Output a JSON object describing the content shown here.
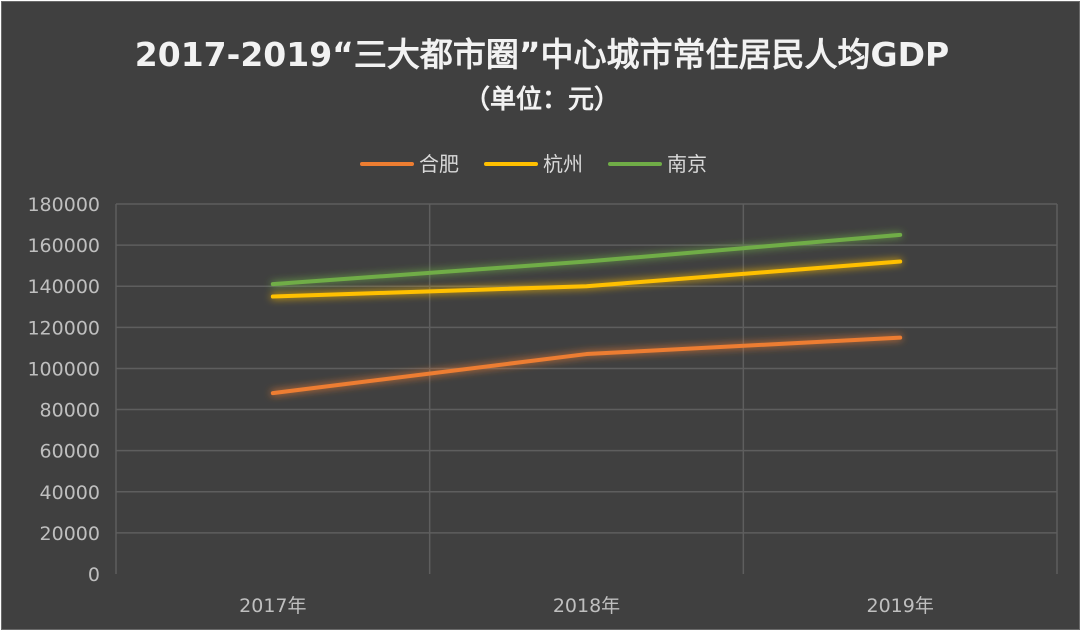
{
  "chart_data": {
    "type": "line",
    "title": "2017-2019“三大都市圈”中心城市常住居民人均GDP",
    "subtitle": "（单位：元）",
    "categories": [
      "2017年",
      "2018年",
      "2019年"
    ],
    "series": [
      {
        "name": "合肥",
        "color": "#ed7d31",
        "values": [
          88000,
          107000,
          115000
        ]
      },
      {
        "name": "杭州",
        "color": "#ffc000",
        "values": [
          135000,
          140000,
          152000
        ]
      },
      {
        "name": "南京",
        "color": "#70ad47",
        "values": [
          141000,
          152000,
          165000
        ]
      }
    ],
    "y_ticks": [
      "0",
      "20000",
      "40000",
      "60000",
      "80000",
      "100000",
      "120000",
      "140000",
      "160000",
      "180000"
    ],
    "ylim": [
      0,
      180000
    ],
    "grid": true,
    "legend_position": "top"
  }
}
